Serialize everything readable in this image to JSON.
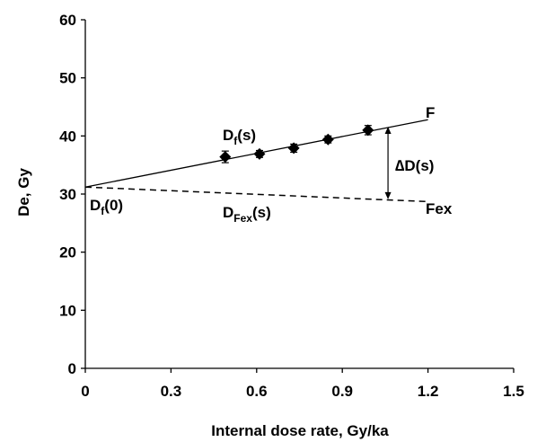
{
  "chart_data": {
    "type": "scatter",
    "title": "",
    "xlabel": "Internal dose rate, Gy/ka",
    "ylabel": "De, Gy",
    "xlim": [
      0,
      1.5
    ],
    "ylim": [
      0,
      60
    ],
    "x_ticks": [
      "0",
      "0.3",
      "0.6",
      "0.9",
      "1.2",
      "1.5"
    ],
    "y_ticks": [
      "0",
      "10",
      "20",
      "30",
      "40",
      "50",
      "60"
    ],
    "grid": false,
    "series": [
      {
        "name": "",
        "marker": "diamond",
        "color": "#000000",
        "points": [
          {
            "x": 0.49,
            "y": 36.4,
            "err": 1.0
          },
          {
            "x": 0.61,
            "y": 36.9,
            "err": 0.6
          },
          {
            "x": 0.73,
            "y": 37.9,
            "err": 0.7
          },
          {
            "x": 0.85,
            "y": 39.4,
            "err": 0.6
          },
          {
            "x": 0.99,
            "y": 41.0,
            "err": 0.8
          }
        ]
      }
    ],
    "fit_line": {
      "label": "F",
      "style": "solid",
      "x": [
        0,
        1.2
      ],
      "y": [
        31.2,
        42.8
      ]
    },
    "fex_line": {
      "label": "Fex",
      "style": "dashed",
      "x": [
        0,
        1.2
      ],
      "y": [
        31.2,
        28.7
      ]
    },
    "delta_arrow": {
      "x": 1.06,
      "y": [
        29.1,
        41.6
      ]
    },
    "annotations": {
      "df_s": {
        "base": "D",
        "sub": "f",
        "tail": "(s)"
      },
      "df_0": {
        "base": "D",
        "sub": "f",
        "tail": "(0)"
      },
      "dfex_s": {
        "base": "D",
        "sub": "Fex",
        "tail": "(s)"
      },
      "delta_d": "∆D(s)",
      "f_label": "F",
      "fex_label": "Fex"
    }
  }
}
